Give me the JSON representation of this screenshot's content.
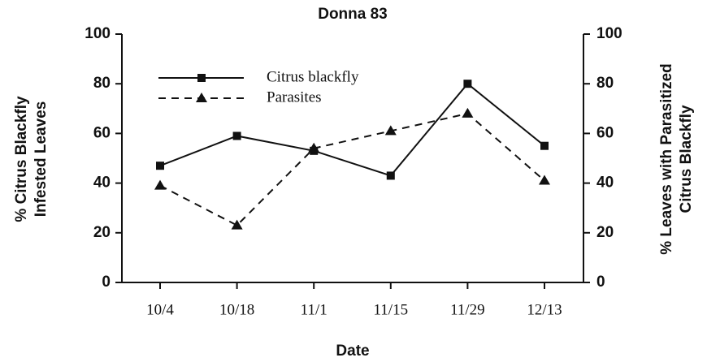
{
  "chart_data": {
    "type": "line",
    "title": "Donna 83",
    "xlabel": "Date",
    "ylabel": [
      "% Citrus Blackfly",
      "Infested Leaves"
    ],
    "y2label": [
      "% Leaves with Parasitized",
      "Citrus Blackfly"
    ],
    "categories": [
      "10/4",
      "10/18",
      "11/1",
      "11/15",
      "11/29",
      "12/13"
    ],
    "series": [
      {
        "name": "Citrus blackfly",
        "color": "#111111",
        "dash": "solid",
        "marker": "square",
        "values": [
          47,
          59,
          53,
          43,
          80,
          55
        ]
      },
      {
        "name": "Parasites",
        "color": "#111111",
        "dash": "dashed",
        "marker": "triangle",
        "axis": "y2",
        "values": [
          39,
          23,
          54,
          61,
          68,
          41
        ]
      }
    ],
    "ylim": [
      0,
      100
    ],
    "yticks": [
      0,
      20,
      40,
      60,
      80,
      100
    ],
    "y2lim": [
      0,
      100
    ],
    "y2ticks": [
      0,
      20,
      40,
      60,
      80,
      100
    ],
    "legend": "upper left"
  }
}
